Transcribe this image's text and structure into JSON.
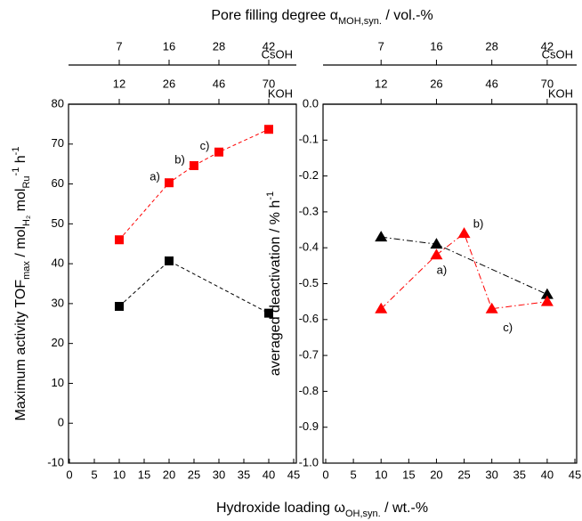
{
  "figure": {
    "title": [
      {
        "text": "Pore filling degree α"
      },
      {
        "text": "MOH,syn.",
        "sub": true
      },
      {
        "text": " / vol.-%"
      }
    ],
    "xlabel": [
      {
        "text": "Hydroxide loading ω"
      },
      {
        "text": "OH,syn.",
        "sub": true
      },
      {
        "text": " / wt.-%"
      }
    ]
  },
  "chart_data": [
    {
      "type": "line",
      "marker": "square",
      "ylabel": [
        {
          "text": "Maximum activity TOF"
        },
        {
          "text": "max",
          "sub": true
        },
        {
          "text": " / mol"
        },
        {
          "text": "H₂",
          "sub": true
        },
        {
          "text": " mol"
        },
        {
          "text": "Ru",
          "sub": true
        },
        {
          "text": "-1",
          "sup": true
        },
        {
          "text": " h"
        },
        {
          "text": "-1",
          "sup": true
        }
      ],
      "xlim": [
        0,
        45
      ],
      "xticks": [
        0,
        5,
        10,
        15,
        20,
        25,
        30,
        35,
        40,
        45
      ],
      "ylim": [
        -10,
        80
      ],
      "yticks": [
        -10,
        0,
        10,
        20,
        30,
        40,
        50,
        60,
        70,
        80
      ],
      "top_axes": [
        {
          "name": "CsOH",
          "ticks": [
            {
              "value": 10,
              "label": "7"
            },
            {
              "value": 20,
              "label": "16"
            },
            {
              "value": 30,
              "label": "28"
            },
            {
              "value": 40,
              "label": "42"
            }
          ]
        },
        {
          "name": "KOH",
          "ticks": [
            {
              "value": 10,
              "label": "12"
            },
            {
              "value": 20,
              "label": "26"
            },
            {
              "value": 30,
              "label": "46"
            },
            {
              "value": 40,
              "label": "70"
            }
          ]
        }
      ],
      "series": [
        {
          "color": "#ff0000",
          "line_style": "dash",
          "x": [
            10,
            20,
            25,
            30,
            40
          ],
          "values": [
            46,
            60.3,
            64.6,
            68,
            73.7
          ],
          "point_labels": [
            null,
            "a)",
            "b)",
            "c)",
            null
          ]
        },
        {
          "color": "#000000",
          "line_style": "dash",
          "x": [
            10,
            20,
            40
          ],
          "values": [
            29.3,
            40.7,
            27.6
          ]
        }
      ]
    },
    {
      "type": "line",
      "marker": "triangle",
      "ylabel": [
        {
          "text": "averaged deactivation / % h"
        },
        {
          "text": "-1",
          "sup": true
        }
      ],
      "xlim": [
        0,
        45
      ],
      "xticks": [
        0,
        5,
        10,
        15,
        20,
        25,
        30,
        35,
        40,
        45
      ],
      "ylim": [
        -1,
        0
      ],
      "yticks": [
        {
          "value": 0,
          "label": "0.0"
        },
        -0.1,
        -0.2,
        -0.3,
        -0.4,
        -0.5,
        -0.6,
        -0.7,
        -0.8,
        -0.9,
        {
          "value": -1,
          "label": "-1.0"
        }
      ],
      "top_axes": [
        {
          "name": "CsOH",
          "ticks": [
            {
              "value": 10,
              "label": "7"
            },
            {
              "value": 20,
              "label": "16"
            },
            {
              "value": 30,
              "label": "28"
            },
            {
              "value": 40,
              "label": "42"
            }
          ]
        },
        {
          "name": "KOH",
          "ticks": [
            {
              "value": 10,
              "label": "12"
            },
            {
              "value": 20,
              "label": "26"
            },
            {
              "value": 30,
              "label": "46"
            },
            {
              "value": 40,
              "label": "70"
            }
          ]
        }
      ],
      "series": [
        {
          "color": "#000000",
          "line_style": "dashdot",
          "x": [
            10,
            20,
            40
          ],
          "values": [
            -0.37,
            -0.39,
            -0.53
          ]
        },
        {
          "color": "#ff0000",
          "line_style": "dashdot",
          "x": [
            10,
            20,
            25,
            30,
            40
          ],
          "values": [
            -0.57,
            -0.42,
            -0.36,
            -0.57,
            -0.55
          ],
          "point_labels": [
            null,
            "a)",
            "b)",
            "c)",
            null
          ]
        }
      ]
    }
  ]
}
